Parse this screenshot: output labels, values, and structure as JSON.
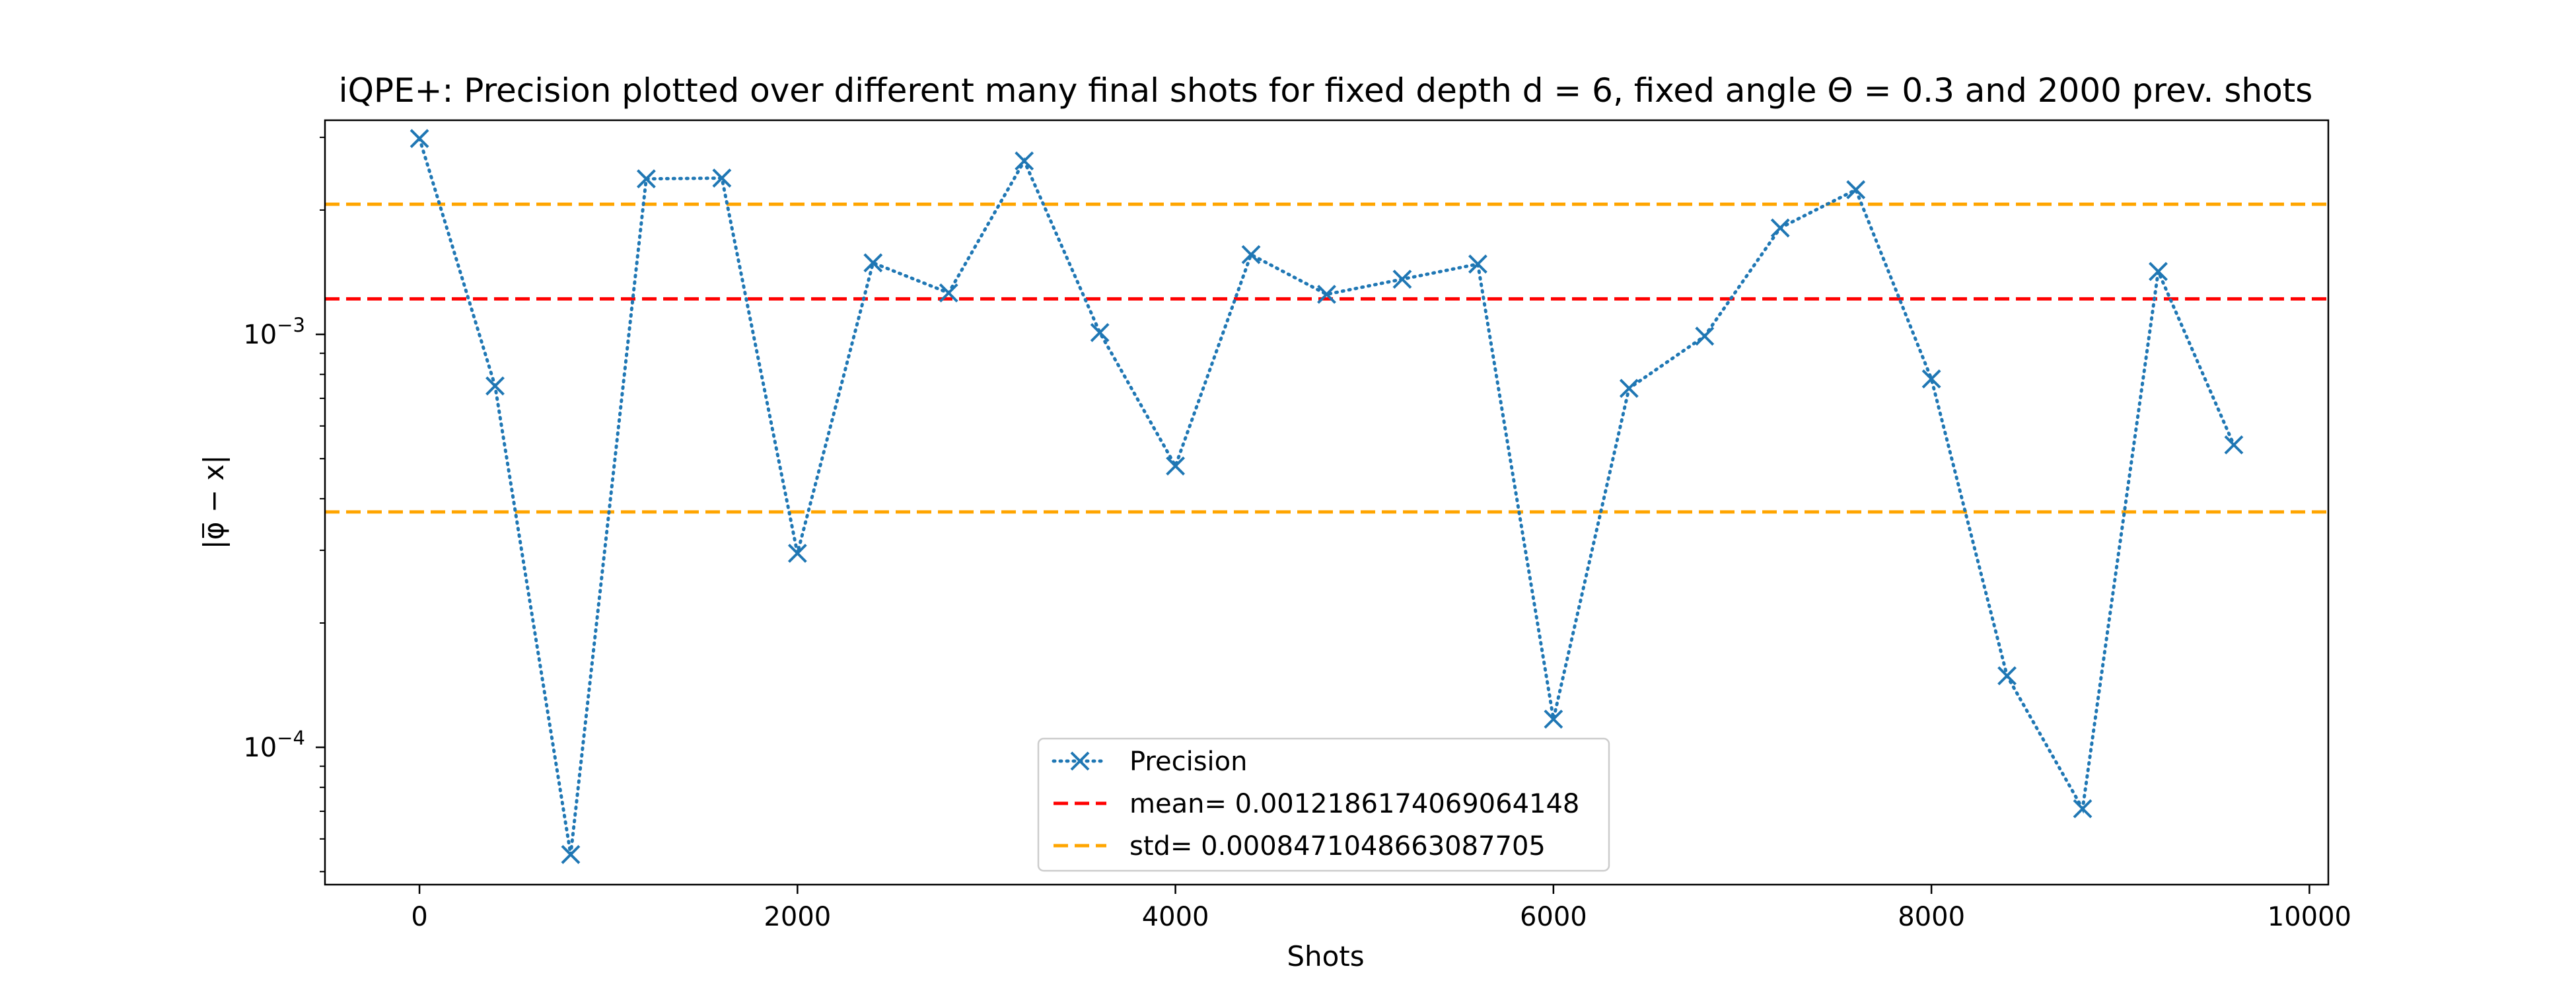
{
  "chart_data": {
    "type": "line",
    "title": "iQPE+: Precision plotted over different many final shots for fixed depth d = 6, fixed angle Θ = 0.3 and 2000 prev. shots",
    "xlabel": "Shots",
    "ylabel": "|φ̅ − x|",
    "xscale": "linear",
    "yscale": "log",
    "xlim": [
      -500,
      10100
    ],
    "ylim": [
      4.65e-05,
      0.0033
    ],
    "xticks": [
      0,
      2000,
      4000,
      6000,
      8000,
      10000
    ],
    "xtick_labels": [
      "0",
      "2000",
      "4000",
      "6000",
      "8000",
      "10000"
    ],
    "yticks": [
      0.001,
      0.0001
    ],
    "ytick_labels": [
      {
        "base": "10",
        "exp": "−3"
      },
      {
        "base": "10",
        "exp": "−4"
      }
    ],
    "grid": false,
    "legend_position": "lower-center",
    "series": [
      {
        "name": "Precision",
        "color": "#1f77b4",
        "line_style": "dotted",
        "marker": "x",
        "x": [
          0,
          400,
          800,
          1200,
          1600,
          2000,
          2400,
          2800,
          3200,
          3600,
          4000,
          4400,
          4800,
          5200,
          5600,
          6000,
          6400,
          6800,
          7200,
          7600,
          8000,
          8400,
          8800,
          9200,
          9600
        ],
        "y": [
          0.00298,
          0.00075,
          5.5e-05,
          0.00238,
          0.00239,
          0.000295,
          0.00149,
          0.00126,
          0.00263,
          0.00101,
          0.00048,
          0.00156,
          0.00125,
          0.00136,
          0.00148,
          0.000117,
          0.00074,
          0.00099,
          0.00181,
          0.00224,
          0.00078,
          0.000149,
          7.1e-05,
          0.00142,
          0.00054
        ]
      }
    ],
    "reference_lines": [
      {
        "label": "mean= 0.0012186174069064148",
        "value": 0.0012186174069064148,
        "color": "#ff0000",
        "line_style": "dashed"
      },
      {
        "label": "std= 0.0008471048663087705",
        "value": 0.002065722273215185,
        "color": "#ffa500",
        "line_style": "dashed"
      },
      {
        "label": "",
        "value": 0.0003715125405976443,
        "color": "#ffa500",
        "line_style": "dashed"
      }
    ],
    "legend": [
      {
        "label": "Precision",
        "color": "#1f77b4",
        "style": "dotted-x"
      },
      {
        "label": "mean= 0.0012186174069064148",
        "color": "#ff0000",
        "style": "dashed"
      },
      {
        "label": "std= 0.0008471048663087705",
        "color": "#ffa500",
        "style": "dashed"
      }
    ]
  }
}
